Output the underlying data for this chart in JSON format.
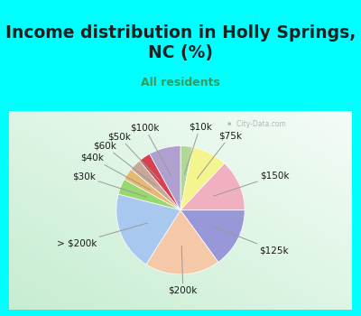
{
  "title": "Income distribution in Holly Springs,\nNC (%)",
  "subtitle": "All residents",
  "labels": [
    "$10k",
    "$75k",
    "$150k",
    "$125k",
    "$200k",
    "> $200k",
    "$30k",
    "$40k",
    "$60k",
    "$50k",
    "$100k"
  ],
  "values": [
    3,
    9,
    13,
    15,
    19,
    20,
    4,
    3,
    3,
    3,
    8
  ],
  "colors": [
    "#b0d898",
    "#f5f590",
    "#f0b0c0",
    "#9898d8",
    "#f5c8a8",
    "#a8c8f0",
    "#98d870",
    "#e8b870",
    "#c8a898",
    "#d84050",
    "#b0a0d0"
  ],
  "bg_cyan": "#00ffff",
  "bg_chart_top": "#e0f5e8",
  "bg_chart_bottom": "#c8e8d8",
  "title_color": "#202020",
  "subtitle_color": "#3a9a5c",
  "watermark": "City-Data.com",
  "label_fontsize": 7.5,
  "title_fontsize": 13.5,
  "subtitle_fontsize": 9
}
